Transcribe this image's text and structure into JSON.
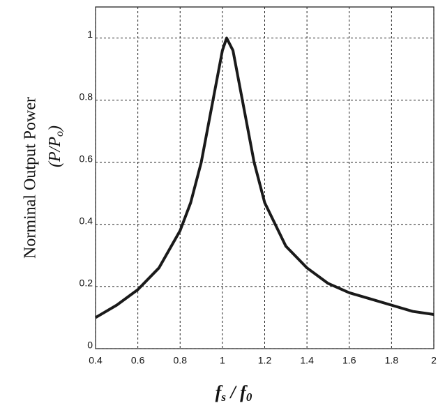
{
  "chart_data": {
    "type": "line",
    "y_label": [
      "Norminal Output Power",
      "(P/P",
      "o",
      ")"
    ],
    "x_label": [
      "f",
      "s",
      " / ",
      "f",
      "0"
    ],
    "x": [
      0.4,
      0.5,
      0.6,
      0.7,
      0.8,
      0.85,
      0.9,
      0.95,
      1.0,
      1.02,
      1.05,
      1.1,
      1.15,
      1.2,
      1.3,
      1.4,
      1.5,
      1.6,
      1.7,
      1.8,
      1.9,
      2.0
    ],
    "series": [
      {
        "color": "#1a1a1a",
        "values": [
          0.1,
          0.14,
          0.19,
          0.26,
          0.38,
          0.47,
          0.6,
          0.78,
          0.96,
          1.0,
          0.96,
          0.78,
          0.6,
          0.47,
          0.33,
          0.26,
          0.21,
          0.18,
          0.16,
          0.14,
          0.12,
          0.11
        ]
      }
    ],
    "xlim": [
      0.4,
      2
    ],
    "ylim": [
      0,
      1.1
    ],
    "xticks": [
      0.4,
      0.6,
      0.8,
      1,
      1.2,
      1.4,
      1.6,
      1.8,
      2
    ],
    "yticks": [
      0,
      0.2,
      0.4,
      0.6,
      0.8,
      1
    ],
    "grid": true
  }
}
